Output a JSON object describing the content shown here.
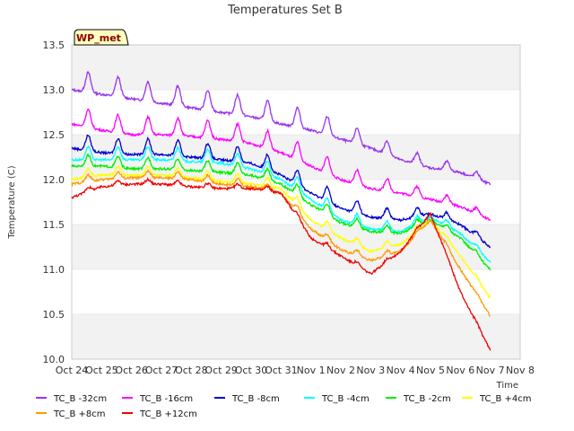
{
  "chart_data": {
    "type": "line",
    "title": "Temperatures Set B",
    "xlabel": "Time",
    "ylabel": "Temperature (C)",
    "ylim": [
      10.0,
      13.5
    ],
    "yticks": [
      10.0,
      10.5,
      11.0,
      11.5,
      12.0,
      12.5,
      13.0,
      13.5
    ],
    "xlim": [
      0,
      15
    ],
    "xtick_labels": [
      "Oct 24",
      "Oct 25",
      "Oct 26",
      "Oct 27",
      "Oct 28",
      "Oct 29",
      "Oct 30",
      "Oct 31",
      "Nov 1",
      "Nov 2",
      "Nov 3",
      "Nov 4",
      "Nov 5",
      "Nov 6",
      "Nov 7",
      "Nov 8"
    ],
    "grid": "alternating horizontal bands",
    "legend_position": "bottom",
    "annotation": "WP_met",
    "colors": {
      "band": "#f2f2f2",
      "badge_fill": "#ffffc0",
      "badge_text": "#8b0000"
    },
    "series": [
      {
        "name": "TC_B -32cm",
        "color": "#9933ee",
        "x": [
          0,
          1,
          2,
          3,
          4,
          5,
          6,
          7,
          8,
          9,
          10,
          11,
          12,
          13,
          14
        ],
        "y": [
          13.0,
          12.95,
          12.9,
          12.85,
          12.8,
          12.75,
          12.7,
          12.62,
          12.55,
          12.45,
          12.35,
          12.22,
          12.13,
          12.08,
          11.95
        ]
      },
      {
        "name": "TC_B -16cm",
        "color": "#ff00ff",
        "x": [
          0,
          1,
          2,
          3,
          4,
          5,
          6,
          7,
          8,
          9,
          10,
          11,
          12,
          13,
          14
        ],
        "y": [
          12.62,
          12.55,
          12.5,
          12.5,
          12.48,
          12.45,
          12.4,
          12.3,
          12.15,
          12.0,
          11.9,
          11.85,
          11.78,
          11.7,
          11.55
        ]
      },
      {
        "name": "TC_B -8cm",
        "color": "#0000cc",
        "x": [
          0,
          1,
          2,
          3,
          4,
          5,
          6,
          7,
          8,
          9,
          10,
          11,
          12,
          13,
          14
        ],
        "y": [
          12.35,
          12.3,
          12.28,
          12.28,
          12.25,
          12.22,
          12.18,
          12.05,
          11.85,
          11.68,
          11.58,
          11.55,
          11.62,
          11.5,
          11.25
        ]
      },
      {
        "name": "TC_B -4cm",
        "color": "#00ffff",
        "x": [
          0,
          1,
          2,
          3,
          4,
          5,
          6,
          7,
          8,
          9,
          10,
          11,
          12,
          13,
          14
        ],
        "y": [
          12.22,
          12.22,
          12.22,
          12.22,
          12.2,
          12.18,
          12.12,
          12.0,
          11.78,
          11.55,
          11.45,
          11.42,
          11.58,
          11.4,
          11.08
        ]
      },
      {
        "name": "TC_B -2cm",
        "color": "#00ee00",
        "x": [
          0,
          1,
          2,
          3,
          4,
          5,
          6,
          7,
          8,
          9,
          10,
          11,
          12,
          13,
          14
        ],
        "y": [
          12.15,
          12.15,
          12.12,
          12.12,
          12.1,
          12.08,
          12.05,
          11.95,
          11.72,
          11.52,
          11.42,
          11.4,
          11.55,
          11.35,
          11.0
        ]
      },
      {
        "name": "TC_B +4cm",
        "color": "#ffff00",
        "x": [
          0,
          1,
          2,
          3,
          4,
          5,
          6,
          7,
          8,
          9,
          10,
          11,
          12,
          13,
          14
        ],
        "y": [
          12.0,
          12.05,
          12.05,
          12.05,
          12.02,
          11.98,
          11.95,
          11.9,
          11.55,
          11.35,
          11.2,
          11.28,
          11.55,
          11.15,
          10.68
        ]
      },
      {
        "name": "TC_B +8cm",
        "color": "#ff9900",
        "x": [
          0,
          1,
          2,
          3,
          4,
          5,
          6,
          7,
          8,
          9,
          10,
          11,
          12,
          13,
          14
        ],
        "y": [
          11.95,
          12.0,
          12.02,
          12.02,
          12.0,
          11.95,
          11.92,
          11.85,
          11.45,
          11.22,
          11.1,
          11.2,
          11.55,
          11.0,
          10.48
        ]
      },
      {
        "name": "TC_B +12cm",
        "color": "#ee0000",
        "x": [
          0,
          1,
          2,
          3,
          4,
          5,
          6,
          7,
          8,
          9,
          10,
          11,
          12,
          13,
          14
        ],
        "y": [
          11.8,
          11.92,
          11.95,
          11.95,
          11.92,
          11.9,
          11.9,
          11.85,
          11.35,
          11.15,
          10.95,
          11.2,
          11.62,
          10.75,
          10.1
        ]
      }
    ]
  }
}
